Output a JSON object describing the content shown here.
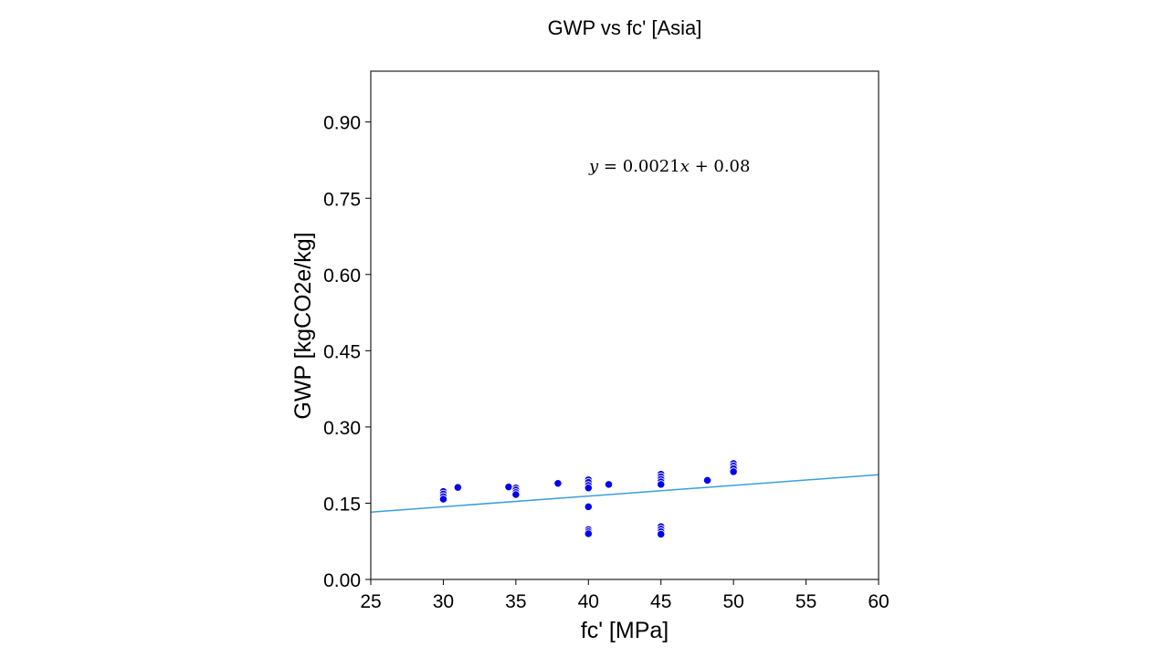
{
  "chart_data": {
    "type": "scatter",
    "title": "GWP vs fc' [Asia]",
    "xlabel": "fc' [MPa]",
    "ylabel": "GWP [kgCO2e/kg]",
    "xlim": [
      25,
      60
    ],
    "ylim": [
      0,
      1.0
    ],
    "xticks": [
      25,
      30,
      35,
      40,
      45,
      50,
      55,
      60
    ],
    "yticks": [
      0.0,
      0.15,
      0.3,
      0.45,
      0.6,
      0.75,
      0.9
    ],
    "xtick_labels": [
      "25",
      "30",
      "35",
      "40",
      "45",
      "50",
      "55",
      "60"
    ],
    "ytick_labels": [
      "0.00",
      "0.15",
      "0.30",
      "0.45",
      "0.60",
      "0.75",
      "0.90"
    ],
    "grid": false,
    "points": [
      {
        "x": 30,
        "y": 0.173
      },
      {
        "x": 30,
        "y": 0.168
      },
      {
        "x": 30,
        "y": 0.163
      },
      {
        "x": 30,
        "y": 0.158
      },
      {
        "x": 31,
        "y": 0.181
      },
      {
        "x": 34.5,
        "y": 0.182
      },
      {
        "x": 35,
        "y": 0.18
      },
      {
        "x": 35,
        "y": 0.176
      },
      {
        "x": 35,
        "y": 0.171
      },
      {
        "x": 35,
        "y": 0.167
      },
      {
        "x": 37.9,
        "y": 0.189
      },
      {
        "x": 40,
        "y": 0.196
      },
      {
        "x": 40,
        "y": 0.191
      },
      {
        "x": 40,
        "y": 0.185
      },
      {
        "x": 40,
        "y": 0.18
      },
      {
        "x": 40,
        "y": 0.143
      },
      {
        "x": 40,
        "y": 0.098
      },
      {
        "x": 40,
        "y": 0.094
      },
      {
        "x": 40,
        "y": 0.09
      },
      {
        "x": 41.4,
        "y": 0.187
      },
      {
        "x": 45,
        "y": 0.207
      },
      {
        "x": 45,
        "y": 0.202
      },
      {
        "x": 45,
        "y": 0.197
      },
      {
        "x": 45,
        "y": 0.192
      },
      {
        "x": 45,
        "y": 0.187
      },
      {
        "x": 45,
        "y": 0.104
      },
      {
        "x": 45,
        "y": 0.099
      },
      {
        "x": 45,
        "y": 0.094
      },
      {
        "x": 45,
        "y": 0.089
      },
      {
        "x": 48.2,
        "y": 0.195
      },
      {
        "x": 50,
        "y": 0.228
      },
      {
        "x": 50,
        "y": 0.223
      },
      {
        "x": 50,
        "y": 0.218
      },
      {
        "x": 50,
        "y": 0.212
      }
    ],
    "fit_line": {
      "slope": 0.0021,
      "intercept": 0.08,
      "label": "y = 0.0021x + 0.08",
      "x_range": [
        25,
        60
      ]
    },
    "colors": {
      "points": "#0000ee",
      "point_edge": "#ffffff",
      "fit_line": "#3a9fdc",
      "axes": "#000000"
    }
  },
  "equation": {
    "y": "y",
    "eq": " = ",
    "coef": "0.0021",
    "x": "x",
    "plus": " + ",
    "intercept": "0.08"
  }
}
